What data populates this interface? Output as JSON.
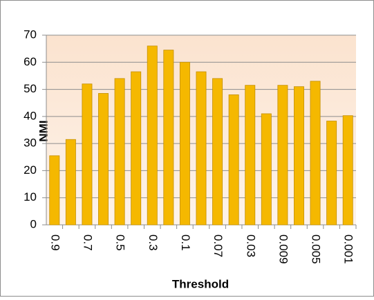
{
  "chart_data": {
    "type": "bar",
    "x_label": "Threshold",
    "y_label": "NMI",
    "categories": [
      "0.9",
      null,
      "0.7",
      null,
      "0.5",
      null,
      "0.3",
      null,
      "0.1",
      null,
      "0.07",
      null,
      "0.03",
      null,
      "0.009",
      null,
      "0.005",
      null,
      "0.001"
    ],
    "values": [
      25.5,
      31.5,
      52,
      48.5,
      54,
      56.5,
      66,
      64.5,
      60,
      56.5,
      54,
      48,
      51.5,
      41,
      51.5,
      51,
      53,
      38.3,
      40.3
    ],
    "color": "#f5b800",
    "ylim": [
      0,
      70
    ],
    "yticks": [
      0,
      10,
      20,
      30,
      40,
      50,
      60,
      70
    ],
    "grid": true
  }
}
